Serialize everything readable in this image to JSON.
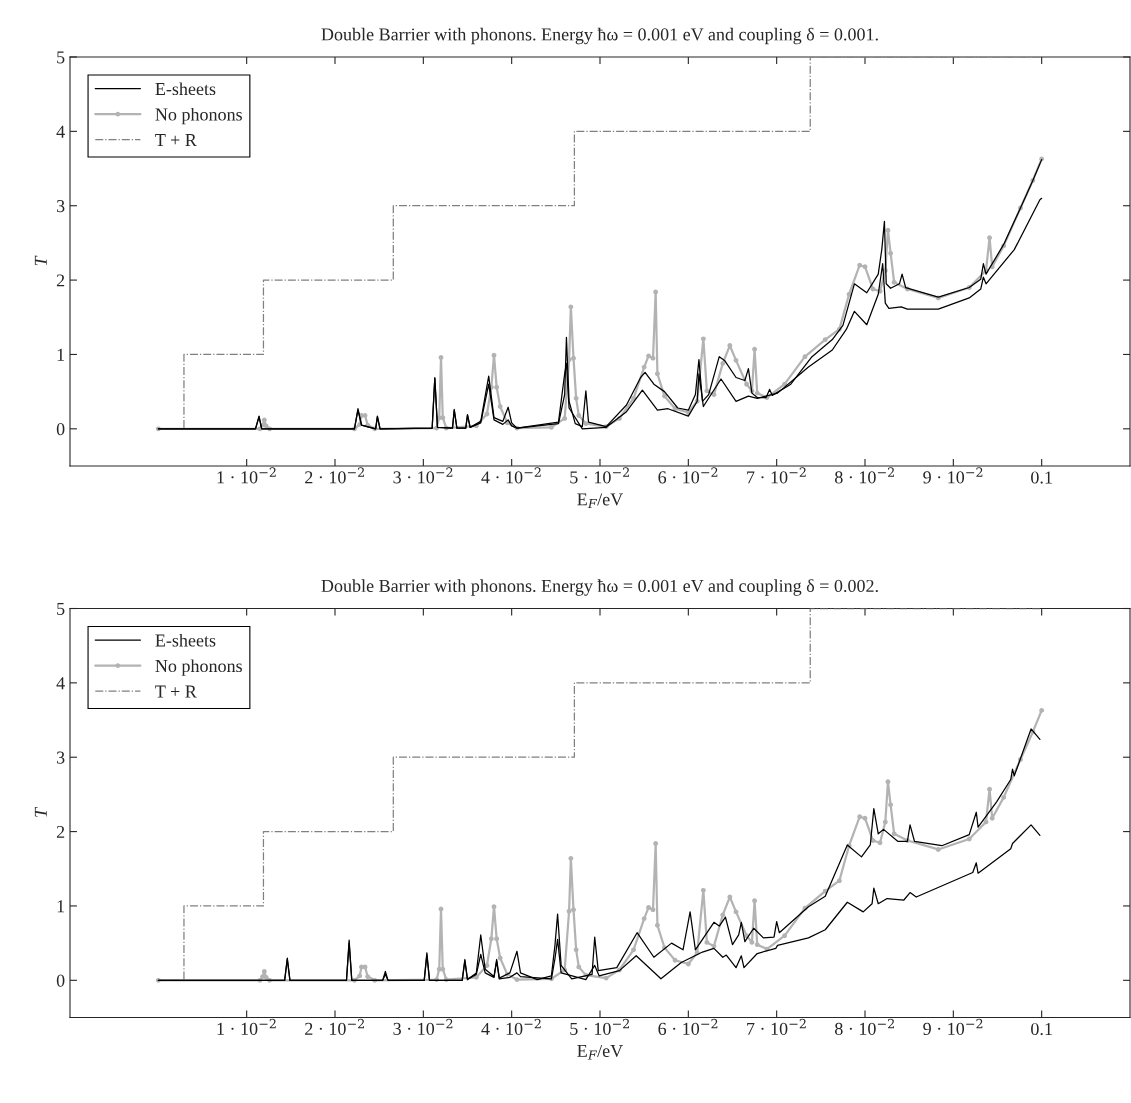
{
  "chart_data": [
    {
      "type": "line",
      "title": "Double Barrier with phonons. Energy ħω = 0.001 eV and coupling δ = 0.001.",
      "xlabel": "E$_{F}$/eV",
      "ylabel": "T",
      "xlim": [
        -0.01,
        0.11
      ],
      "ylim": [
        -0.5,
        5
      ],
      "xticks": [
        {
          "value": 0.01,
          "label": "1 · 10$^{−2}$"
        },
        {
          "value": 0.02,
          "label": "2 · 10$^{−2}$"
        },
        {
          "value": 0.03,
          "label": "3 · 10$^{−2}$"
        },
        {
          "value": 0.04,
          "label": "4 · 10$^{−2}$"
        },
        {
          "value": 0.05,
          "label": "5 · 10$^{−2}$"
        },
        {
          "value": 0.06,
          "label": "6 · 10$^{−2}$"
        },
        {
          "value": 0.07,
          "label": "7 · 10$^{−2}$"
        },
        {
          "value": 0.08,
          "label": "8 · 10$^{−2}$"
        },
        {
          "value": 0.09,
          "label": "9 · 10$^{−2}$"
        },
        0.1
      ],
      "yticks": [
        0,
        1,
        2,
        3,
        4,
        5
      ],
      "legend": "top left",
      "series": [
        {
          "name": "E-sheets",
          "type": "line",
          "color": "#000000",
          "line_style": "solid",
          "marker": "none",
          "x": [
            0,
            0.011,
            0.0114,
            0.0117,
            0.0222,
            0.0226,
            0.023,
            0.0246,
            0.0248,
            0.0251,
            0.031,
            0.0313,
            0.0316,
            0.0333,
            0.0335,
            0.0338,
            0.0348,
            0.035,
            0.0353,
            0.0365,
            0.0374,
            0.038,
            0.039,
            0.0396,
            0.04,
            0.0406,
            0.0453,
            0.046,
            0.0462,
            0.0465,
            0.0472,
            0.048,
            0.0484,
            0.0487,
            0.0507,
            0.053,
            0.0546,
            0.0551,
            0.0561,
            0.0573,
            0.0588,
            0.06,
            0.0608,
            0.0612,
            0.0616,
            0.0623,
            0.0635,
            0.0641,
            0.0654,
            0.0664,
            0.0668,
            0.0672,
            0.0678,
            0.0688,
            0.0692,
            0.0695,
            0.0716,
            0.074,
            0.0763,
            0.0775,
            0.0788,
            0.0802,
            0.0815,
            0.0819,
            0.0822,
            0.0824,
            0.0829,
            0.0839,
            0.0842,
            0.0846,
            0.0883,
            0.0918,
            0.0931,
            0.0934,
            0.0937,
            0.0957,
            0.0976,
            0.099,
            0.1
          ],
          "values": [
            0,
            0,
            0.17,
            0,
            0,
            0.27,
            0.05,
            0,
            0.17,
            0,
            0.01,
            0.69,
            0.02,
            0.01,
            0.26,
            0.01,
            0.01,
            0.19,
            0.02,
            0.1,
            0.71,
            0.15,
            0.1,
            0.29,
            0.08,
            0.01,
            0.07,
            0.46,
            1.23,
            0.37,
            0.07,
            0.03,
            0.51,
            0.09,
            0.03,
            0.32,
            0.69,
            0.76,
            0.6,
            0.5,
            0.28,
            0.25,
            0.46,
            0.93,
            0.37,
            0.46,
            0.97,
            0.92,
            0.69,
            0.65,
            0.81,
            0.48,
            0.42,
            0.42,
            0.53,
            0.45,
            0.6,
            0.97,
            1.2,
            1.39,
            1.95,
            1.83,
            2.08,
            2.41,
            2.79,
            1.95,
            1.89,
            1.95,
            2.08,
            1.9,
            1.77,
            1.9,
            2.01,
            2.22,
            2.08,
            2.48,
            2.97,
            3.34,
            3.62
          ]
        },
        {
          "type": "line",
          "color": "#000000",
          "line_style": "solid",
          "marker": "none",
          "x": [
            0,
            0.011,
            0.0114,
            0.0117,
            0.0222,
            0.0226,
            0.023,
            0.0246,
            0.0248,
            0.0251,
            0.031,
            0.0313,
            0.0316,
            0.0333,
            0.0335,
            0.0338,
            0.0348,
            0.035,
            0.0353,
            0.0365,
            0.0374,
            0.038,
            0.039,
            0.0396,
            0.04,
            0.0406,
            0.0453,
            0.046,
            0.0462,
            0.0465,
            0.048,
            0.0507,
            0.053,
            0.0548,
            0.0565,
            0.0577,
            0.06,
            0.061,
            0.0612,
            0.0617,
            0.0637,
            0.0654,
            0.0668,
            0.0678,
            0.0701,
            0.0736,
            0.0763,
            0.0779,
            0.0788,
            0.0802,
            0.0815,
            0.082,
            0.0823,
            0.0827,
            0.0841,
            0.0848,
            0.0883,
            0.0918,
            0.0931,
            0.0934,
            0.0937,
            0.0969,
            0.0998,
            0.1
          ],
          "values": [
            0,
            0,
            0.16,
            0,
            0,
            0.25,
            0.05,
            0,
            0.16,
            0,
            0.01,
            0.68,
            0.02,
            0.01,
            0.25,
            0.01,
            0.01,
            0.18,
            0.02,
            0.08,
            0.6,
            0.12,
            0.06,
            0.12,
            0.04,
            0.01,
            0.09,
            0.74,
            0.88,
            0.28,
            0,
            0.02,
            0.23,
            0.52,
            0.25,
            0.27,
            0.17,
            0.37,
            0.74,
            0.3,
            0.67,
            0.37,
            0.44,
            0.41,
            0.48,
            0.83,
            1.06,
            1.34,
            1.58,
            1.4,
            1.81,
            2.22,
            1.69,
            1.62,
            1.64,
            1.61,
            1.61,
            1.76,
            1.88,
            2.04,
            1.95,
            2.41,
            3.08,
            3.1
          ]
        },
        {
          "name": "No phonons",
          "type": "line",
          "color": "#b3b3b3",
          "line_style": "solid",
          "marker": "circle",
          "x": [
            0,
            0.0115,
            0.0118,
            0.012,
            0.0122,
            0.0126,
            0.0222,
            0.0228,
            0.023,
            0.0234,
            0.0237,
            0.0245,
            0.0315,
            0.0318,
            0.032,
            0.0322,
            0.0326,
            0.036,
            0.0372,
            0.0377,
            0.038,
            0.0383,
            0.0387,
            0.0395,
            0.0406,
            0.0445,
            0.046,
            0.0465,
            0.0467,
            0.047,
            0.0473,
            0.0476,
            0.0484,
            0.0507,
            0.0522,
            0.0538,
            0.055,
            0.0555,
            0.056,
            0.0563,
            0.0565,
            0.0573,
            0.0585,
            0.06,
            0.061,
            0.0617,
            0.0621,
            0.0629,
            0.0639,
            0.0647,
            0.0654,
            0.0666,
            0.0672,
            0.0675,
            0.0678,
            0.0689,
            0.0709,
            0.0732,
            0.0755,
            0.0771,
            0.0782,
            0.0794,
            0.08,
            0.0809,
            0.0817,
            0.0823,
            0.0826,
            0.0829,
            0.0833,
            0.0848,
            0.0883,
            0.0918,
            0.0937,
            0.0941,
            0.0944,
            0.0957,
            0.0976,
            0.099,
            0.1
          ],
          "values": [
            0,
            0,
            0.05,
            0.12,
            0.04,
            0,
            0,
            0.06,
            0.18,
            0.18,
            0.05,
            0,
            0.01,
            0.15,
            0.96,
            0.15,
            0.01,
            0.04,
            0.2,
            0.56,
            0.99,
            0.56,
            0.3,
            0.08,
            0.01,
            0.02,
            0.14,
            0.93,
            1.64,
            0.95,
            0.41,
            0.18,
            0.07,
            0.03,
            0.14,
            0.41,
            0.83,
            0.98,
            0.95,
            1.84,
            0.74,
            0.44,
            0.27,
            0.22,
            0.37,
            1.21,
            0.51,
            0.46,
            0.88,
            1.12,
            0.92,
            0.6,
            0.51,
            1.07,
            0.48,
            0.42,
            0.6,
            0.97,
            1.2,
            1.34,
            1.81,
            2.2,
            2.18,
            1.88,
            1.85,
            2.13,
            2.67,
            2.36,
            1.97,
            1.88,
            1.76,
            1.9,
            2.13,
            2.57,
            2.18,
            2.46,
            2.97,
            3.34,
            3.63
          ]
        },
        {
          "name": "T + R",
          "type": "step",
          "color": "#808080",
          "line_style": "dashdot",
          "marker": "none",
          "x": [
            0,
            0.0029,
            0.0119,
            0.0266,
            0.0471,
            0.0738,
            0.1
          ],
          "values": [
            0,
            1,
            2,
            3,
            4,
            5,
            5
          ]
        }
      ]
    },
    {
      "type": "line",
      "title": "Double Barrier with phonons. Energy ħω = 0.001 eV and coupling δ = 0.002.",
      "xlabel": "E$_{F}$/eV",
      "ylabel": "T",
      "xlim": [
        -0.01,
        0.11
      ],
      "ylim": [
        -0.5,
        5
      ],
      "xticks": [
        {
          "value": 0.01,
          "label": "1 · 10$^{−2}$"
        },
        {
          "value": 0.02,
          "label": "2 · 10$^{−2}$"
        },
        {
          "value": 0.03,
          "label": "3 · 10$^{−2}$"
        },
        {
          "value": 0.04,
          "label": "4 · 10$^{−2}$"
        },
        {
          "value": 0.05,
          "label": "5 · 10$^{−2}$"
        },
        {
          "value": 0.06,
          "label": "6 · 10$^{−2}$"
        },
        {
          "value": 0.07,
          "label": "7 · 10$^{−2}$"
        },
        {
          "value": 0.08,
          "label": "8 · 10$^{−2}$"
        },
        {
          "value": 0.09,
          "label": "9 · 10$^{−2}$"
        },
        0.1
      ],
      "yticks": [
        0,
        1,
        2,
        3,
        4,
        5
      ],
      "legend": "top left",
      "series": [
        {
          "name": "E-sheets",
          "type": "line",
          "color": "#000000",
          "line_style": "solid",
          "marker": "none",
          "x": [
            0,
            0.0143,
            0.0146,
            0.0149,
            0.0213,
            0.0216,
            0.0219,
            0.0254,
            0.0257,
            0.026,
            0.0301,
            0.0304,
            0.0307,
            0.0344,
            0.0347,
            0.035,
            0.036,
            0.0365,
            0.037,
            0.038,
            0.0383,
            0.0386,
            0.0398,
            0.0406,
            0.041,
            0.0429,
            0.0445,
            0.0449,
            0.0452,
            0.0456,
            0.0468,
            0.0491,
            0.0494,
            0.0498,
            0.0519,
            0.0542,
            0.0561,
            0.0581,
            0.0594,
            0.0602,
            0.0608,
            0.0629,
            0.0635,
            0.0642,
            0.065,
            0.0657,
            0.066,
            0.0664,
            0.0674,
            0.0685,
            0.0697,
            0.07,
            0.0703,
            0.0736,
            0.0755,
            0.078,
            0.0796,
            0.0806,
            0.081,
            0.0815,
            0.0821,
            0.0837,
            0.0848,
            0.0851,
            0.0856,
            0.0887,
            0.0918,
            0.0926,
            0.0928,
            0.0949,
            0.0965,
            0.0967,
            0.0969,
            0.0988,
            0.0998
          ],
          "values": [
            0,
            0,
            0.3,
            0,
            0,
            0.54,
            0,
            0,
            0.12,
            0,
            0,
            0.37,
            0,
            0,
            0.28,
            0.01,
            0.1,
            0.61,
            0.15,
            0.05,
            0.28,
            0.03,
            0.1,
            0.39,
            0.1,
            0.01,
            0.06,
            0.47,
            0.89,
            0.2,
            0.02,
            0.08,
            0.58,
            0.13,
            0.17,
            0.64,
            0.31,
            0.5,
            0.41,
            0.92,
            0.41,
            0.78,
            0.73,
            0.85,
            0.48,
            0.61,
            0.78,
            0.52,
            0.7,
            0.57,
            0.58,
            0.79,
            0.64,
            0.99,
            1.13,
            1.82,
            1.66,
            1.82,
            2.31,
            1.97,
            2.03,
            1.87,
            1.87,
            2.09,
            1.87,
            1.81,
            1.96,
            2.26,
            2.06,
            2.4,
            2.7,
            2.84,
            2.75,
            3.38,
            3.24
          ]
        },
        {
          "type": "line",
          "color": "#000000",
          "line_style": "solid",
          "marker": "none",
          "x": [
            0,
            0.0143,
            0.0146,
            0.0149,
            0.0213,
            0.0216,
            0.0219,
            0.0254,
            0.0257,
            0.026,
            0.0301,
            0.0304,
            0.0307,
            0.0344,
            0.0347,
            0.035,
            0.036,
            0.0365,
            0.037,
            0.038,
            0.0383,
            0.0386,
            0.0398,
            0.0406,
            0.041,
            0.0445,
            0.0449,
            0.0452,
            0.0456,
            0.0484,
            0.0494,
            0.0499,
            0.0522,
            0.0541,
            0.0569,
            0.0592,
            0.0616,
            0.0629,
            0.0639,
            0.0643,
            0.0654,
            0.066,
            0.0663,
            0.0678,
            0.0699,
            0.0701,
            0.0736,
            0.0755,
            0.078,
            0.0798,
            0.0808,
            0.081,
            0.0815,
            0.0825,
            0.0844,
            0.0851,
            0.0858,
            0.0922,
            0.0926,
            0.0928,
            0.0965,
            0.0967,
            0.0988,
            0.0998
          ],
          "values": [
            0,
            0,
            0.28,
            0,
            0,
            0.5,
            0,
            0,
            0.08,
            0,
            0,
            0.34,
            0,
            0,
            0.26,
            0.01,
            0.08,
            0.35,
            0.1,
            0.04,
            0.26,
            0.02,
            0.04,
            0.1,
            0.05,
            0.02,
            0.29,
            0.55,
            0.1,
            0.01,
            0.2,
            0.06,
            0.13,
            0.33,
            0.02,
            0.24,
            0.38,
            0.43,
            0.31,
            0.34,
            0.17,
            0.33,
            0.17,
            0.36,
            0.43,
            0.47,
            0.57,
            0.68,
            1.05,
            0.92,
            1.03,
            1.24,
            1.03,
            1.1,
            1.08,
            1.18,
            1.12,
            1.45,
            1.58,
            1.44,
            1.77,
            1.84,
            2.09,
            1.95
          ]
        },
        {
          "name": "No phonons",
          "type": "line",
          "color": "#b3b3b3",
          "line_style": "solid",
          "marker": "circle",
          "x": [
            0,
            0.0115,
            0.0118,
            0.012,
            0.0122,
            0.0126,
            0.0222,
            0.0228,
            0.023,
            0.0234,
            0.0237,
            0.0245,
            0.0315,
            0.0318,
            0.032,
            0.0322,
            0.0326,
            0.036,
            0.0372,
            0.0377,
            0.038,
            0.0383,
            0.0387,
            0.0395,
            0.0406,
            0.0445,
            0.046,
            0.0465,
            0.0467,
            0.047,
            0.0473,
            0.0476,
            0.0484,
            0.0507,
            0.0522,
            0.0538,
            0.055,
            0.0555,
            0.056,
            0.0563,
            0.0565,
            0.0573,
            0.0585,
            0.06,
            0.061,
            0.0617,
            0.0621,
            0.0629,
            0.0639,
            0.0647,
            0.0654,
            0.0666,
            0.0672,
            0.0675,
            0.0678,
            0.0689,
            0.0709,
            0.0732,
            0.0755,
            0.0771,
            0.0782,
            0.0794,
            0.08,
            0.0809,
            0.0817,
            0.0823,
            0.0826,
            0.0829,
            0.0833,
            0.0848,
            0.0883,
            0.0918,
            0.0937,
            0.0941,
            0.0944,
            0.0957,
            0.0976,
            0.099,
            0.1
          ],
          "values": [
            0,
            0,
            0.05,
            0.12,
            0.04,
            0,
            0,
            0.06,
            0.18,
            0.18,
            0.05,
            0,
            0.01,
            0.15,
            0.96,
            0.15,
            0.01,
            0.04,
            0.2,
            0.56,
            0.99,
            0.56,
            0.3,
            0.08,
            0.01,
            0.02,
            0.14,
            0.93,
            1.64,
            0.95,
            0.41,
            0.18,
            0.07,
            0.03,
            0.14,
            0.41,
            0.83,
            0.98,
            0.95,
            1.84,
            0.74,
            0.44,
            0.27,
            0.22,
            0.37,
            1.21,
            0.51,
            0.46,
            0.88,
            1.12,
            0.92,
            0.6,
            0.51,
            1.07,
            0.48,
            0.42,
            0.6,
            0.97,
            1.2,
            1.34,
            1.81,
            2.2,
            2.18,
            1.88,
            1.85,
            2.13,
            2.67,
            2.36,
            1.97,
            1.88,
            1.76,
            1.9,
            2.13,
            2.57,
            2.18,
            2.46,
            2.97,
            3.34,
            3.63
          ]
        },
        {
          "name": "T + R",
          "type": "step",
          "color": "#808080",
          "line_style": "dashdot",
          "marker": "none",
          "x": [
            0,
            0.0029,
            0.0119,
            0.0266,
            0.0471,
            0.0738,
            0.1
          ],
          "values": [
            0,
            1,
            2,
            3,
            4,
            5,
            5
          ]
        }
      ]
    }
  ]
}
